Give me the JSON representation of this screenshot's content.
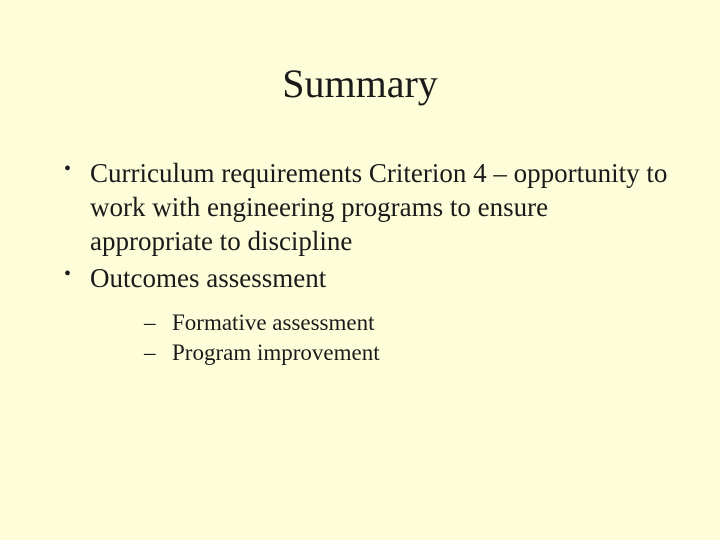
{
  "slide": {
    "title": "Summary",
    "bullets": [
      {
        "text": "Curriculum requirements Criterion 4 – opportunity to work with engineering programs to ensure appropriate to discipline"
      },
      {
        "text": "Outcomes assessment",
        "subitems": [
          "Formative assessment",
          "Program improvement"
        ]
      }
    ]
  },
  "style": {
    "background_color": "#fdfdd9",
    "text_color": "#1a1a1a",
    "title_fontsize": 40,
    "bullet_fontsize": 27,
    "sub_bullet_fontsize": 23,
    "font_family": "Times New Roman"
  }
}
